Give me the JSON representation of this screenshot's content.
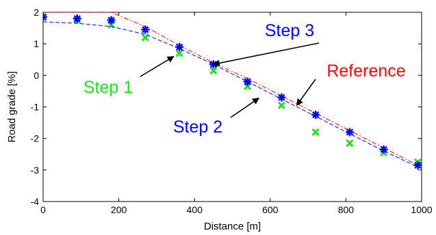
{
  "chart_data": {
    "type": "line",
    "xlabel": "Distance [m]",
    "ylabel": "Road grade [%]",
    "xlim": [
      0,
      1000
    ],
    "ylim": [
      -4,
      2
    ],
    "xticks": [
      0,
      200,
      400,
      600,
      800,
      1000
    ],
    "yticks": [
      -4,
      -3,
      -2,
      -1,
      0,
      1,
      2
    ],
    "grid": false,
    "legend": "none",
    "series": [
      {
        "name": "Reference",
        "style": "dash-dot",
        "color": "#ff0000",
        "x": [
          0,
          180,
          270,
          360,
          450,
          540,
          630,
          720,
          810,
          900,
          990
        ],
        "y": [
          2.0,
          2.0,
          1.55,
          0.95,
          0.4,
          -0.1,
          -0.65,
          -1.2,
          -1.75,
          -2.3,
          -2.85
        ]
      },
      {
        "name": "Step 1",
        "style": "x-markers",
        "color": "#22dd22",
        "x": [
          0,
          90,
          180,
          270,
          360,
          450,
          540,
          630,
          720,
          810,
          900,
          990
        ],
        "y": [
          1.85,
          1.75,
          1.6,
          1.2,
          0.7,
          0.15,
          -0.35,
          -0.95,
          -1.8,
          -2.15,
          -2.45,
          -2.75
        ]
      },
      {
        "name": "Step 2",
        "style": "dashed",
        "color": "#0000ff",
        "x": [
          0,
          90,
          180,
          270,
          360,
          450,
          540,
          630,
          720,
          810,
          900,
          990
        ],
        "y": [
          1.7,
          1.65,
          1.55,
          1.3,
          0.85,
          0.35,
          -0.2,
          -0.75,
          -1.3,
          -1.85,
          -2.4,
          -2.9
        ]
      },
      {
        "name": "Step 3",
        "style": "star-markers",
        "color": "#0000ff",
        "x": [
          0,
          90,
          180,
          270,
          360,
          450,
          540,
          630,
          720,
          810,
          900,
          990
        ],
        "y": [
          1.85,
          1.8,
          1.75,
          1.45,
          0.9,
          0.35,
          -0.2,
          -0.7,
          -1.25,
          -1.8,
          -2.35,
          -2.85
        ]
      }
    ],
    "annotations": [
      {
        "text": "Step 3",
        "color": "#0000ff",
        "point": [
          450,
          0.35
        ]
      },
      {
        "text": "Reference",
        "color": "#ff0000",
        "point": [
          670,
          -0.95
        ]
      },
      {
        "text": "Step 1",
        "color": "#22dd22",
        "point": [
          345,
          0.6
        ]
      },
      {
        "text": "Step 2",
        "color": "#0000ff",
        "point": [
          570,
          -0.72
        ]
      }
    ]
  }
}
